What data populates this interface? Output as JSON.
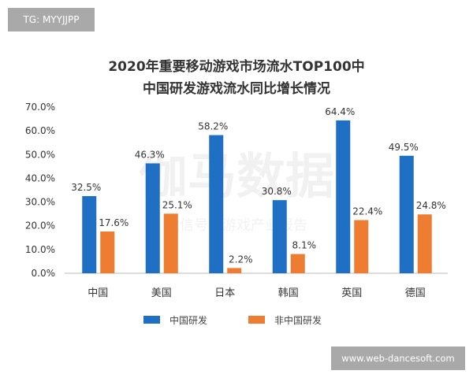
{
  "watermarks": {
    "top_left": "TG: MYYJJPP",
    "bottom_right": "www.web-dancesoft.com",
    "chart_logo": "伽马数据",
    "chart_logo_sub": "微信号：游戏产业报告"
  },
  "chart_data": {
    "type": "bar",
    "title": "2020年重要移动游戏市场流水TOP100中",
    "subtitle": "中国研发游戏流水同比增长情况",
    "categories": [
      "中国",
      "美国",
      "日本",
      "韩国",
      "英国",
      "德国"
    ],
    "series": [
      {
        "name": "中国研发",
        "color": "#1f6fc5",
        "values": [
          32.5,
          46.3,
          58.2,
          30.8,
          64.4,
          49.5
        ],
        "labels": [
          "32.5%",
          "46.3%",
          "58.2%",
          "30.8%",
          "64.4%",
          "49.5%"
        ]
      },
      {
        "name": "非中国研发",
        "color": "#ee7d31",
        "values": [
          17.6,
          25.1,
          2.2,
          8.1,
          22.4,
          24.8
        ],
        "labels": [
          "17.6%",
          "25.1%",
          "2.2%",
          "8.1%",
          "22.4%",
          "24.8%"
        ]
      }
    ],
    "ylim": [
      0,
      70
    ],
    "yticks": [
      "0.0%",
      "10.0%",
      "20.0%",
      "30.0%",
      "40.0%",
      "50.0%",
      "60.0%",
      "70.0%"
    ],
    "grid": false,
    "legend": "bottom"
  }
}
